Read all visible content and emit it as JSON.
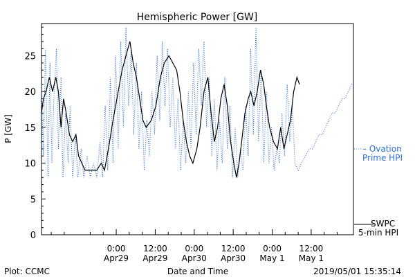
{
  "chart_data": {
    "type": "line",
    "title": "Hemispheric Power [GW]",
    "xlabel": "Date and Time",
    "ylabel": "P [GW]",
    "ylim": [
      0,
      29.5
    ],
    "xlim": [
      -11.5,
      36.5
    ],
    "yticks": [
      0,
      5,
      10,
      15,
      20,
      25
    ],
    "xticks": [
      {
        "x": 0,
        "time": "0:00",
        "date": "Apr29"
      },
      {
        "x": 6,
        "time": "12:00",
        "date": "Apr29"
      },
      {
        "x": 12,
        "time": "0:00",
        "date": "Apr30"
      },
      {
        "x": 18,
        "time": "12:00",
        "date": "Apr30"
      },
      {
        "x": 24,
        "time": "0:00",
        "date": "May 1"
      },
      {
        "x": 30,
        "time": "12:00",
        "date": "May 1"
      }
    ],
    "x_units_note": "hours",
    "series": [
      {
        "name_lines": [
          "SWPC",
          "5-min HPI"
        ],
        "style": "solid",
        "color": "#000000",
        "points": [
          [
            -11.5,
            17
          ],
          [
            -11.2,
            19
          ],
          [
            -10.8,
            20
          ],
          [
            -10.3,
            22
          ],
          [
            -9.8,
            20
          ],
          [
            -9.3,
            22
          ],
          [
            -8.9,
            20
          ],
          [
            -8.5,
            15
          ],
          [
            -8.1,
            19
          ],
          [
            -7.7,
            17
          ],
          [
            -7.2,
            14
          ],
          [
            -6.7,
            13
          ],
          [
            -6.2,
            14
          ],
          [
            -5.8,
            11
          ],
          [
            -5.3,
            10
          ],
          [
            -4.8,
            9
          ],
          [
            -4.0,
            9
          ],
          [
            -3.0,
            9
          ],
          [
            -2.3,
            10
          ],
          [
            -1.8,
            9
          ],
          [
            -1.2,
            12
          ],
          [
            -0.5,
            16
          ],
          [
            0.3,
            20
          ],
          [
            0.9,
            23
          ],
          [
            1.5,
            25
          ],
          [
            2.1,
            27
          ],
          [
            2.6,
            24
          ],
          [
            3.1,
            22
          ],
          [
            3.6,
            19
          ],
          [
            4.1,
            16
          ],
          [
            4.6,
            15
          ],
          [
            5.4,
            16
          ],
          [
            6.1,
            18
          ],
          [
            6.8,
            22
          ],
          [
            7.4,
            24
          ],
          [
            8.1,
            25
          ],
          [
            8.7,
            24
          ],
          [
            9.3,
            23
          ],
          [
            9.8,
            20
          ],
          [
            10.3,
            16
          ],
          [
            10.8,
            13
          ],
          [
            11.3,
            11
          ],
          [
            11.8,
            10
          ],
          [
            12.4,
            12
          ],
          [
            12.9,
            15
          ],
          [
            13.5,
            20
          ],
          [
            14.1,
            22
          ],
          [
            14.6,
            17
          ],
          [
            15.1,
            13
          ],
          [
            15.6,
            15
          ],
          [
            16.1,
            19
          ],
          [
            16.6,
            21
          ],
          [
            17.1,
            18
          ],
          [
            17.6,
            13
          ],
          [
            18.1,
            10
          ],
          [
            18.5,
            8
          ],
          [
            18.9,
            10
          ],
          [
            19.3,
            13
          ],
          [
            19.8,
            17
          ],
          [
            20.3,
            19
          ],
          [
            20.7,
            20
          ],
          [
            21.2,
            18
          ],
          [
            21.7,
            20
          ],
          [
            22.2,
            23
          ],
          [
            22.7,
            21
          ],
          [
            23.1,
            18
          ],
          [
            23.6,
            15
          ],
          [
            24.2,
            13
          ],
          [
            24.8,
            12
          ],
          [
            25.3,
            15
          ],
          [
            25.8,
            12
          ],
          [
            26.3,
            14
          ],
          [
            26.8,
            16
          ],
          [
            27.3,
            20
          ],
          [
            27.8,
            22
          ],
          [
            28.2,
            21
          ]
        ]
      },
      {
        "name_lines": [
          "– Ovation",
          "Prime HPI"
        ],
        "style": "dotted",
        "color": "#2a6fd6",
        "points": [
          [
            -11.5,
            21
          ],
          [
            -11.2,
            11
          ],
          [
            -10.9,
            26
          ],
          [
            -10.5,
            8
          ],
          [
            -10.2,
            24
          ],
          [
            -9.9,
            10
          ],
          [
            -9.6,
            19
          ],
          [
            -9.2,
            26
          ],
          [
            -8.9,
            12
          ],
          [
            -8.5,
            22
          ],
          [
            -8.2,
            8
          ],
          [
            -7.8,
            17
          ],
          [
            -7.4,
            10
          ],
          [
            -7.1,
            18
          ],
          [
            -6.7,
            8
          ],
          [
            -6.3,
            14
          ],
          [
            -5.9,
            8
          ],
          [
            -5.4,
            12
          ],
          [
            -5.0,
            8
          ],
          [
            -4.5,
            11
          ],
          [
            -4.0,
            8
          ],
          [
            -3.5,
            10
          ],
          [
            -3.0,
            8
          ],
          [
            -2.5,
            13
          ],
          [
            -2.1,
            8
          ],
          [
            -1.7,
            18
          ],
          [
            -1.3,
            9
          ],
          [
            -0.9,
            22
          ],
          [
            -0.5,
            10
          ],
          [
            -0.1,
            25
          ],
          [
            0.3,
            12
          ],
          [
            0.7,
            27
          ],
          [
            1.1,
            15
          ],
          [
            1.5,
            29
          ],
          [
            1.9,
            18
          ],
          [
            2.3,
            26
          ],
          [
            2.7,
            14
          ],
          [
            3.1,
            24
          ],
          [
            3.5,
            12
          ],
          [
            3.9,
            20
          ],
          [
            4.3,
            9
          ],
          [
            4.7,
            16
          ],
          [
            5.1,
            11
          ],
          [
            5.5,
            20
          ],
          [
            5.9,
            14
          ],
          [
            6.3,
            25
          ],
          [
            6.7,
            16
          ],
          [
            7.1,
            27
          ],
          [
            7.5,
            18
          ],
          [
            7.9,
            26
          ],
          [
            8.3,
            15
          ],
          [
            8.7,
            22
          ],
          [
            9.1,
            12
          ],
          [
            9.5,
            19
          ],
          [
            9.9,
            9
          ],
          [
            10.3,
            16
          ],
          [
            10.7,
            10
          ],
          [
            11.1,
            20
          ],
          [
            11.5,
            12
          ],
          [
            11.9,
            24
          ],
          [
            12.3,
            14
          ],
          [
            12.7,
            26
          ],
          [
            13.1,
            18
          ],
          [
            13.5,
            27
          ],
          [
            13.9,
            15
          ],
          [
            14.3,
            22
          ],
          [
            14.7,
            11
          ],
          [
            15.1,
            19
          ],
          [
            15.5,
            9
          ],
          [
            15.9,
            16
          ],
          [
            16.3,
            10
          ],
          [
            16.7,
            22
          ],
          [
            17.1,
            12
          ],
          [
            17.5,
            18
          ],
          [
            17.9,
            8
          ],
          [
            18.3,
            15
          ],
          [
            18.7,
            8
          ],
          [
            19.1,
            12
          ],
          [
            19.5,
            9
          ],
          [
            19.9,
            18
          ],
          [
            20.3,
            11
          ],
          [
            20.7,
            26
          ],
          [
            21.1,
            14
          ],
          [
            21.5,
            29
          ],
          [
            21.9,
            13
          ],
          [
            22.3,
            23
          ],
          [
            22.7,
            10
          ],
          [
            23.1,
            20
          ],
          [
            23.5,
            10
          ],
          [
            23.9,
            15
          ],
          [
            24.3,
            9
          ],
          [
            24.7,
            12
          ],
          [
            25.1,
            10
          ],
          [
            25.5,
            17
          ],
          [
            25.9,
            11
          ],
          [
            26.3,
            21
          ],
          [
            26.7,
            13
          ],
          [
            27.1,
            18
          ],
          [
            27.5,
            10
          ],
          [
            28.0,
            9
          ],
          [
            28.5,
            10
          ],
          [
            29.1,
            11
          ],
          [
            29.7,
            12
          ],
          [
            30.2,
            12
          ],
          [
            30.7,
            13
          ],
          [
            31.2,
            14
          ],
          [
            31.7,
            14
          ],
          [
            32.2,
            15
          ],
          [
            32.7,
            16
          ],
          [
            33.2,
            17
          ],
          [
            33.7,
            17
          ],
          [
            34.2,
            18
          ],
          [
            34.7,
            19
          ],
          [
            35.2,
            19
          ],
          [
            35.7,
            20
          ],
          [
            36.2,
            21
          ],
          [
            36.5,
            21
          ]
        ]
      }
    ]
  },
  "footer": {
    "left": "Plot: CCMC",
    "right": "2019/05/01  15:35:14"
  }
}
